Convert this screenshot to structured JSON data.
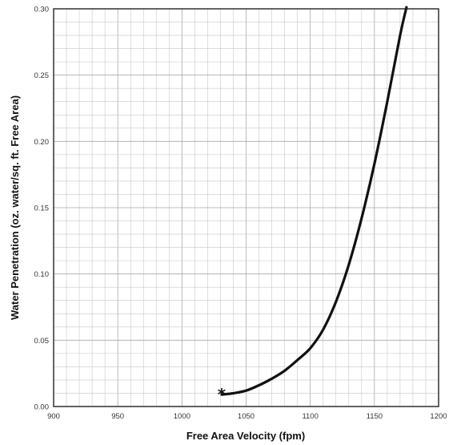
{
  "chart_data": {
    "type": "line",
    "xlabel": "Free Area Velocity (fpm)",
    "ylabel": "Water Penetration (oz. water/sq. ft. Free Area)",
    "xlim": [
      900,
      1200
    ],
    "ylim": [
      0,
      0.3
    ],
    "x_ticks": [
      "900",
      "950",
      "1000",
      "1050",
      "1100",
      "1150",
      "1200"
    ],
    "y_ticks": [
      "0.00",
      "0.05",
      "0.10",
      "0.15",
      "0.20",
      "0.25",
      "0.30"
    ],
    "grid": true,
    "series": [
      {
        "color": "#111111",
        "marker_symbol": "*",
        "x": [
          1031,
          1040,
          1050,
          1060,
          1070,
          1080,
          1090,
          1100,
          1110,
          1120,
          1130,
          1140,
          1150,
          1160,
          1170,
          1175
        ],
        "y": [
          0.009,
          0.01,
          0.012,
          0.016,
          0.021,
          0.027,
          0.035,
          0.044,
          0.058,
          0.079,
          0.107,
          0.142,
          0.183,
          0.23,
          0.28,
          0.303
        ]
      }
    ]
  }
}
